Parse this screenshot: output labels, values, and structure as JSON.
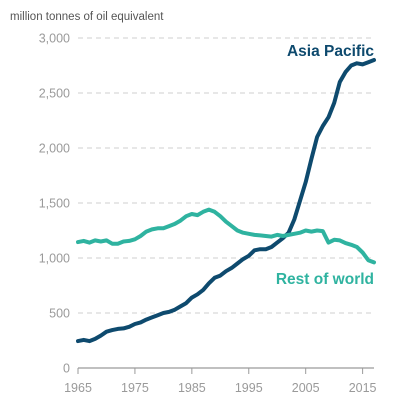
{
  "chart_data": {
    "type": "line",
    "ylabel": "million tonnes of oil equivalent",
    "ylim": [
      0,
      3000
    ],
    "yticks": [
      0,
      500,
      1000,
      1500,
      2000,
      2500,
      3000
    ],
    "ytick_labels": [
      "0",
      "500",
      "1,000",
      "1,500",
      "2,000",
      "2,500",
      "3,000"
    ],
    "xlim": [
      1965,
      2017
    ],
    "xticks": [
      1965,
      1975,
      1985,
      1995,
      2005,
      2015
    ],
    "xtick_labels": [
      "1965",
      "1975",
      "1985",
      "1995",
      "2005",
      "2015"
    ],
    "grid": "horizontal dashed",
    "x": [
      1965,
      1966,
      1967,
      1968,
      1969,
      1970,
      1971,
      1972,
      1973,
      1974,
      1975,
      1976,
      1977,
      1978,
      1979,
      1980,
      1981,
      1982,
      1983,
      1984,
      1985,
      1986,
      1987,
      1988,
      1989,
      1990,
      1991,
      1992,
      1993,
      1994,
      1995,
      1996,
      1997,
      1998,
      1999,
      2000,
      2001,
      2002,
      2003,
      2004,
      2005,
      2006,
      2007,
      2008,
      2009,
      2010,
      2011,
      2012,
      2013,
      2014,
      2015,
      2016,
      2017
    ],
    "series": [
      {
        "name": "Asia Pacific",
        "color": "#0e4a6e",
        "values": [
          245,
          255,
          245,
          265,
          295,
          330,
          345,
          355,
          360,
          375,
          400,
          415,
          440,
          460,
          480,
          500,
          510,
          530,
          560,
          590,
          640,
          670,
          710,
          770,
          820,
          840,
          880,
          910,
          950,
          990,
          1020,
          1070,
          1080,
          1080,
          1100,
          1140,
          1180,
          1230,
          1350,
          1520,
          1690,
          1900,
          2100,
          2200,
          2280,
          2410,
          2600,
          2690,
          2750,
          2770,
          2760,
          2780,
          2800
        ]
      },
      {
        "name": "Rest of world",
        "color": "#2fb3a0",
        "values": [
          1145,
          1155,
          1140,
          1160,
          1150,
          1160,
          1130,
          1130,
          1150,
          1155,
          1170,
          1200,
          1240,
          1260,
          1270,
          1270,
          1290,
          1310,
          1340,
          1380,
          1400,
          1390,
          1420,
          1440,
          1420,
          1380,
          1330,
          1290,
          1250,
          1230,
          1220,
          1210,
          1205,
          1200,
          1195,
          1210,
          1200,
          1210,
          1220,
          1230,
          1250,
          1240,
          1250,
          1245,
          1140,
          1165,
          1160,
          1135,
          1120,
          1100,
          1050,
          980,
          960
        ]
      }
    ]
  }
}
